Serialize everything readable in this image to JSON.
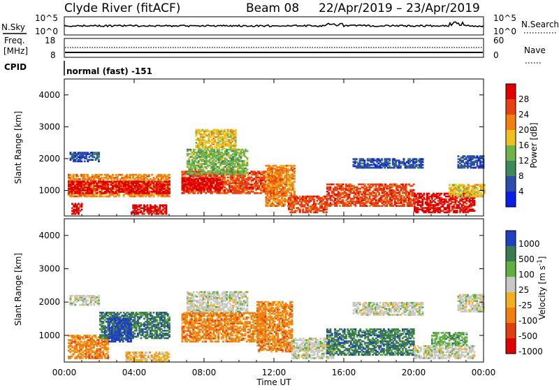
{
  "header": {
    "site": "Clyde River (fitACF)",
    "beam": "Beam 08",
    "date_range": "22/Apr/2019 – 23/Apr/2019"
  },
  "noise_panel": {
    "left_label": "N.Sky",
    "right_label": "N.Search",
    "left_ticks": [
      "10^5",
      "10^0"
    ],
    "right_ticks": [
      "10^5",
      "10^0"
    ]
  },
  "freq_panel": {
    "left_label_1": "Freq.",
    "left_label_2": "[MHz]",
    "right_label": "Nave",
    "left_ticks": [
      "18",
      "8"
    ],
    "right_ticks": [
      "60",
      "0"
    ]
  },
  "cpid_panel": {
    "label": "CPID",
    "text": "normal (fast) -151"
  },
  "colors": {
    "power": [
      "#0a1ee6",
      "#2d4ea8",
      "#3c8a5a",
      "#72b24a",
      "#f0c020",
      "#f08010",
      "#e84010",
      "#e00000"
    ],
    "velocity": [
      "#2040c0",
      "#3a7a50",
      "#60b040",
      "#c8c8c8",
      "#f0b020",
      "#f08010",
      "#e04010",
      "#e00000"
    ]
  },
  "chart_data": [
    {
      "type": "heatmap",
      "name": "power",
      "ylabel": "Slant Range [km]",
      "ylim": [
        200,
        4500
      ],
      "yticks": [
        "1000",
        "2000",
        "3000",
        "4000"
      ],
      "xlim": [
        0,
        24
      ],
      "colorbar_label": "Power [dB]",
      "colorbar_ticks": [
        "4",
        "8",
        "12",
        "16",
        "20",
        "24",
        "28"
      ],
      "regions": [
        {
          "t0": 0.2,
          "t1": 6.0,
          "r0": 800,
          "r1": 1500,
          "c": 5
        },
        {
          "t0": 0.2,
          "t1": 6.0,
          "r0": 900,
          "r1": 1300,
          "c": 7
        },
        {
          "t0": 3.8,
          "t1": 5.8,
          "r0": 250,
          "r1": 550,
          "c": 7
        },
        {
          "t0": 0.4,
          "t1": 1.0,
          "r0": 250,
          "r1": 600,
          "c": 7
        },
        {
          "t0": 0.3,
          "t1": 2.0,
          "r0": 1900,
          "r1": 2200,
          "c": 1
        },
        {
          "t0": 6.7,
          "t1": 12.5,
          "r0": 900,
          "r1": 1600,
          "c": 6
        },
        {
          "t0": 6.7,
          "t1": 9.0,
          "r0": 1000,
          "r1": 1400,
          "c": 7
        },
        {
          "t0": 7.0,
          "t1": 10.5,
          "r0": 1500,
          "r1": 2300,
          "c": 3
        },
        {
          "t0": 7.5,
          "t1": 9.8,
          "r0": 2300,
          "r1": 2900,
          "c": 4
        },
        {
          "t0": 11.5,
          "t1": 13.2,
          "r0": 500,
          "r1": 1800,
          "c": 5
        },
        {
          "t0": 12.8,
          "t1": 15.0,
          "r0": 300,
          "r1": 800,
          "c": 6
        },
        {
          "t0": 15.0,
          "t1": 20.0,
          "r0": 500,
          "r1": 1200,
          "c": 6
        },
        {
          "t0": 16.5,
          "t1": 20.5,
          "r0": 1700,
          "r1": 2000,
          "c": 1
        },
        {
          "t0": 20.0,
          "t1": 23.5,
          "r0": 300,
          "r1": 900,
          "c": 7
        },
        {
          "t0": 22.0,
          "t1": 24.0,
          "r0": 800,
          "r1": 1200,
          "c": 4
        },
        {
          "t0": 22.5,
          "t1": 24.0,
          "r0": 1700,
          "r1": 2100,
          "c": 1
        }
      ]
    },
    {
      "type": "heatmap",
      "name": "velocity",
      "ylabel": "Slant Range [km]",
      "xlabel": "Time UT",
      "ylim": [
        200,
        4500
      ],
      "yticks": [
        "1000",
        "2000",
        "3000",
        "4000"
      ],
      "xlim": [
        0,
        24
      ],
      "xticks": [
        "00:00",
        "04:00",
        "08:00",
        "12:00",
        "16:00",
        "20:00",
        "00:00"
      ],
      "colorbar_label": "Velocity [m s^-1]",
      "colorbar_ticks": [
        "1000",
        "500",
        "100",
        "25",
        "-25",
        "-100",
        "-500",
        "-1000"
      ],
      "regions": [
        {
          "t0": 0.2,
          "t1": 2.5,
          "r0": 300,
          "r1": 1000,
          "c": 5
        },
        {
          "t0": 2.0,
          "t1": 6.0,
          "r0": 900,
          "r1": 1700,
          "c": 1
        },
        {
          "t0": 2.5,
          "t1": 3.8,
          "r0": 800,
          "r1": 1500,
          "c": 0
        },
        {
          "t0": 0.3,
          "t1": 2.0,
          "r0": 1900,
          "r1": 2200,
          "c": 3
        },
        {
          "t0": 3.5,
          "t1": 6.0,
          "r0": 200,
          "r1": 500,
          "c": 4
        },
        {
          "t0": 6.7,
          "t1": 11.5,
          "r0": 800,
          "r1": 1700,
          "c": 5
        },
        {
          "t0": 11.0,
          "t1": 13.0,
          "r0": 500,
          "r1": 2000,
          "c": 5
        },
        {
          "t0": 7.0,
          "t1": 10.5,
          "r0": 1700,
          "r1": 2300,
          "c": 3
        },
        {
          "t0": 13.0,
          "t1": 15.5,
          "r0": 300,
          "r1": 900,
          "c": 3
        },
        {
          "t0": 15.0,
          "t1": 20.0,
          "r0": 400,
          "r1": 1200,
          "c": 1
        },
        {
          "t0": 16.5,
          "t1": 20.5,
          "r0": 1600,
          "r1": 2000,
          "c": 3
        },
        {
          "t0": 20.0,
          "t1": 23.5,
          "r0": 300,
          "r1": 700,
          "c": 3
        },
        {
          "t0": 22.5,
          "t1": 24.0,
          "r0": 1700,
          "r1": 2200,
          "c": 3
        },
        {
          "t0": 21.0,
          "t1": 23.0,
          "r0": 700,
          "r1": 1100,
          "c": 2
        }
      ]
    }
  ]
}
